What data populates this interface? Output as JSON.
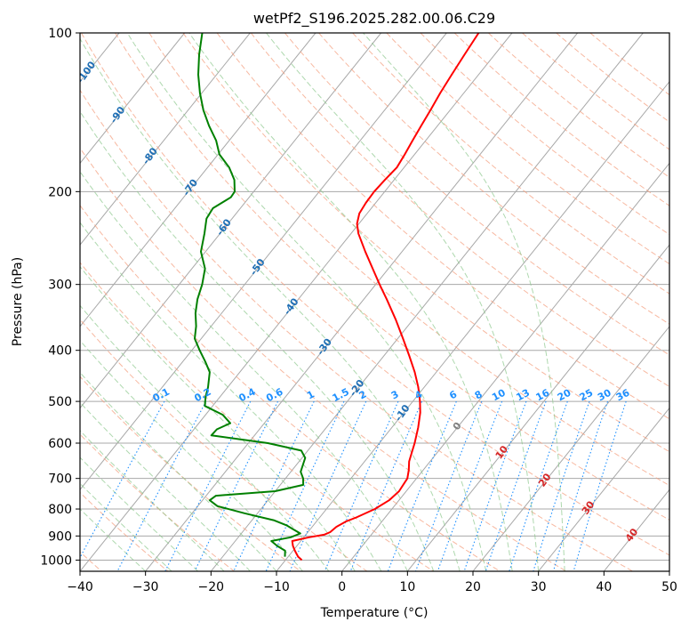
{
  "chart_data": {
    "type": "line",
    "title": "wetPf2_S196.2025.282.00.06.C29",
    "xlabel": "Temperature (°C)",
    "ylabel": "Pressure (hPa)",
    "xlim": [
      -40,
      50
    ],
    "ylim_hpa": [
      1050,
      100
    ],
    "y_scale": "log",
    "x_ticks": [
      "−40",
      "−30",
      "−20",
      "−10",
      "0",
      "10",
      "20",
      "30",
      "40",
      "50"
    ],
    "y_ticks": [
      "100",
      "200",
      "300",
      "400",
      "500",
      "600",
      "700",
      "800",
      "900",
      "1000"
    ],
    "grid": true,
    "colors": {
      "temperature": "#ff0000",
      "dewpoint": "#008000",
      "isotherm": "#a8a8a8",
      "dry_adiabat": "#f4a080",
      "moist_adiabat": "#8cc88c",
      "mixing_ratio": "#1e90ff",
      "isotherm_label_cold": "#1f6fb5",
      "isotherm_label_warm": "#d62728",
      "zero_label": "#7f7f7f"
    },
    "series": [
      {
        "name": "temperature",
        "p": [
          1000,
          985,
          960,
          940,
          920,
          905,
          895,
          885,
          865,
          845,
          830,
          800,
          770,
          740,
          700,
          675,
          650,
          625,
          600,
          560,
          525,
          500,
          470,
          440,
          410,
          380,
          350,
          320,
          300,
          280,
          260,
          240,
          230,
          220,
          210,
          200,
          190,
          180,
          170,
          160,
          150,
          140,
          130,
          120,
          110,
          100
        ],
        "t": [
          -7.5,
          -8.5,
          -9.7,
          -10.6,
          -11.3,
          -9.2,
          -7.2,
          -6.6,
          -6.3,
          -5.5,
          -4.4,
          -2.6,
          -1.5,
          -1.1,
          -1.4,
          -2.2,
          -3.2,
          -3.9,
          -4.6,
          -6.0,
          -7.5,
          -8.9,
          -10.9,
          -13.3,
          -16.1,
          -19.2,
          -22.6,
          -26.5,
          -29.4,
          -32.4,
          -35.6,
          -38.9,
          -40.3,
          -41.2,
          -41.5,
          -41.6,
          -41.4,
          -41.1,
          -41.5,
          -42.0,
          -42.5,
          -43.0,
          -43.6,
          -44.1,
          -44.6,
          -45.1
        ]
      },
      {
        "name": "dewpoint",
        "p": [
          985,
          960,
          940,
          920,
          905,
          890,
          875,
          860,
          840,
          815,
          790,
          770,
          755,
          740,
          720,
          700,
          680,
          660,
          640,
          620,
          600,
          580,
          565,
          550,
          530,
          510,
          490,
          470,
          440,
          420,
          400,
          380,
          360,
          340,
          320,
          300,
          280,
          260,
          240,
          225,
          215,
          205,
          200,
          190,
          180,
          170,
          160,
          150,
          140,
          130,
          120,
          110,
          100
        ],
        "t": [
          -10.5,
          -11.2,
          -13.0,
          -14.5,
          -12.0,
          -11.0,
          -12.5,
          -14.0,
          -16.7,
          -22.0,
          -27.0,
          -28.9,
          -28.5,
          -20.0,
          -16.5,
          -17.3,
          -18.5,
          -19.0,
          -19.5,
          -21.0,
          -27.0,
          -36.6,
          -36.5,
          -35.2,
          -37.4,
          -41.2,
          -42.2,
          -43.0,
          -44.6,
          -46.6,
          -48.8,
          -51.0,
          -52.3,
          -54.0,
          -55.4,
          -56.5,
          -58.0,
          -60.7,
          -62.4,
          -63.9,
          -64.2,
          -62.8,
          -62.9,
          -64.4,
          -66.7,
          -69.8,
          -72.0,
          -74.9,
          -77.7,
          -80.3,
          -82.8,
          -85.1,
          -87.3
        ]
      }
    ],
    "isotherm_labels": [
      "-100",
      "-90",
      "-80",
      "-70",
      "-60",
      "-50",
      "-40",
      "-30",
      "-20",
      "-10",
      "0",
      "10",
      "20",
      "30",
      "40"
    ],
    "mixing_ratio_labels": [
      "0.1",
      "0.2",
      "0.4",
      "0.6",
      "1",
      "1.5",
      "2",
      "3",
      "4",
      "6",
      "8",
      "10",
      "13",
      "16",
      "20",
      "25",
      "30",
      "36"
    ]
  }
}
